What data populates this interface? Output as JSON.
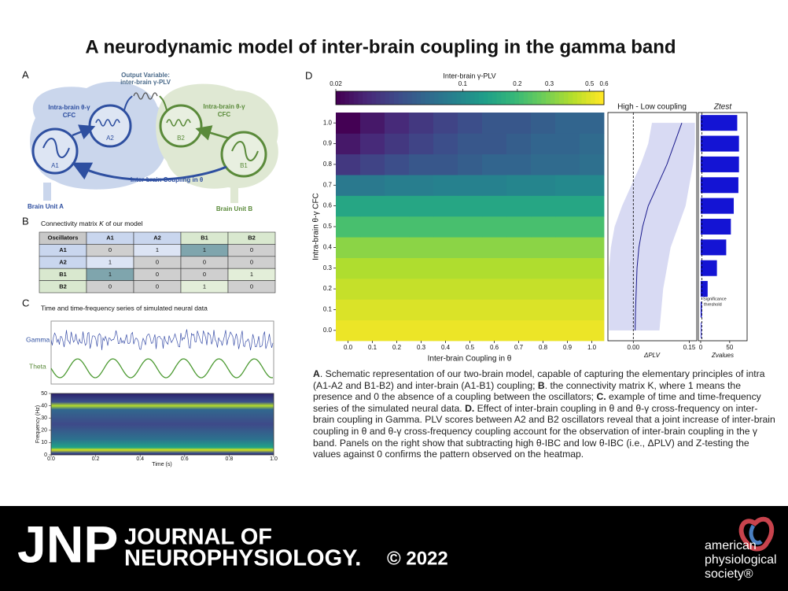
{
  "title": "A neurodynamic model of inter-brain coupling in the gamma band",
  "panel_a": {
    "letter": "A",
    "output_variable": "Output Variable:",
    "output_name": "inter-brain γ-PLV",
    "cfc_left": [
      "Intra-brain θ-γ",
      "CFC"
    ],
    "cfc_right": [
      "Intra-brain θ-γ",
      "CFC"
    ],
    "nodes": [
      "A1",
      "A2",
      "B2",
      "B1"
    ],
    "coupling": "Inter-brain Coupling in θ",
    "unit_a": "Brain Unit A",
    "unit_b": "Brain Unit B"
  },
  "panel_b": {
    "letter": "B",
    "title_pre": "Connectivity matrix ",
    "title_k": "K",
    "title_post": " of our model",
    "header": [
      "Oscillators",
      "A1",
      "A2",
      "B1",
      "B2"
    ],
    "rows": [
      [
        "A1",
        0,
        1,
        1,
        0
      ],
      [
        "A2",
        1,
        0,
        0,
        0
      ],
      [
        "B1",
        1,
        0,
        0,
        1
      ],
      [
        "B2",
        0,
        0,
        1,
        0
      ]
    ]
  },
  "panel_c": {
    "letter": "C",
    "title": "Time and time-frequency series of simulated neural data",
    "gamma_label": "Gamma",
    "theta_label": "Theta",
    "ylabel": "Frequency (Hz)",
    "xlabel": "Time (s)",
    "ylim": [
      0,
      50
    ],
    "yticks": [
      0,
      10,
      20,
      30,
      40,
      50
    ],
    "xlim": [
      0,
      1
    ],
    "xticks": [
      {
        "value": 0,
        "label": "0.0"
      },
      0.2,
      0.4,
      0.6,
      0.8,
      {
        "value": 1,
        "label": "1.0"
      }
    ]
  },
  "panel_d_letter": "D",
  "chart_data": [
    {
      "type": "heatmap",
      "colorbar_label": "Inter-brain γ-PLV",
      "clim": [
        0.02,
        0.6
      ],
      "log": true,
      "colormap": "viridis",
      "colorbar_ticks": [
        0.02,
        0.1,
        0.2,
        0.3,
        0.5,
        0.6
      ],
      "xlabel": "Inter-brain Coupling in θ",
      "ylabel": "Intra-brain θ-γ CFC",
      "xticks": [
        {
          "value": 0,
          "label": "0.0"
        },
        0.1,
        0.2,
        0.3,
        0.4,
        0.5,
        0.6,
        0.7,
        0.8,
        0.9,
        {
          "value": 1,
          "label": "1.0"
        }
      ],
      "yticks": [
        {
          "value": 0,
          "label": "0.0"
        },
        0.1,
        0.2,
        0.3,
        0.4,
        0.5,
        0.6,
        0.7,
        0.8,
        0.9,
        {
          "value": 1,
          "label": "1.0"
        }
      ],
      "values": [
        [
          0.55,
          0.55,
          0.55,
          0.55,
          0.55,
          0.55,
          0.55,
          0.55,
          0.55,
          0.55,
          0.55
        ],
        [
          0.5,
          0.5,
          0.5,
          0.5,
          0.5,
          0.5,
          0.5,
          0.5,
          0.5,
          0.5,
          0.5
        ],
        [
          0.45,
          0.45,
          0.45,
          0.45,
          0.45,
          0.45,
          0.45,
          0.45,
          0.45,
          0.45,
          0.45
        ],
        [
          0.4,
          0.4,
          0.4,
          0.4,
          0.4,
          0.4,
          0.4,
          0.4,
          0.4,
          0.4,
          0.4
        ],
        [
          0.33,
          0.33,
          0.33,
          0.33,
          0.33,
          0.33,
          0.33,
          0.33,
          0.33,
          0.33,
          0.33
        ],
        [
          0.22,
          0.22,
          0.22,
          0.22,
          0.22,
          0.22,
          0.22,
          0.22,
          0.22,
          0.22,
          0.22
        ],
        [
          0.15,
          0.15,
          0.15,
          0.15,
          0.15,
          0.15,
          0.15,
          0.15,
          0.15,
          0.15,
          0.15
        ],
        [
          0.08,
          0.08,
          0.085,
          0.085,
          0.09,
          0.09,
          0.09,
          0.095,
          0.095,
          0.1,
          0.1
        ],
        [
          0.035,
          0.04,
          0.045,
          0.05,
          0.05,
          0.055,
          0.06,
          0.06,
          0.065,
          0.065,
          0.07
        ],
        [
          0.025,
          0.03,
          0.035,
          0.04,
          0.045,
          0.05,
          0.05,
          0.055,
          0.06,
          0.06,
          0.065
        ],
        [
          0.02,
          0.025,
          0.03,
          0.035,
          0.04,
          0.045,
          0.05,
          0.05,
          0.055,
          0.06,
          0.06
        ]
      ]
    },
    {
      "type": "line",
      "title": "High - Low coupling",
      "xlabel": "ΔPLV",
      "xlim": [
        -0.068,
        0.17
      ],
      "xticks": [
        {
          "value": 0,
          "label": "0.00"
        },
        0.15
      ],
      "color": "#1a1a8c",
      "band_color": "#d8daf3",
      "values": [
        0.005,
        0.006,
        0.008,
        0.01,
        0.015,
        0.025,
        0.04,
        0.065,
        0.09,
        0.11,
        0.13
      ],
      "band_low": [
        -0.065,
        -0.065,
        -0.065,
        -0.065,
        -0.06,
        -0.05,
        -0.03,
        -0.005,
        0.02,
        0.04,
        0.05
      ],
      "band_high": [
        0.07,
        0.075,
        0.08,
        0.09,
        0.1,
        0.12,
        0.14,
        0.15,
        0.16,
        0.165,
        0.165
      ]
    },
    {
      "type": "bar",
      "title": "Ztest",
      "xlabel": "Zvalues",
      "xlim": [
        -4,
        80
      ],
      "xticks": [
        0,
        50
      ],
      "color": "#1414d4",
      "threshold": 1.96,
      "annotation": [
        "Significance",
        "threshold"
      ],
      "values": [
        1,
        2,
        12,
        28,
        44,
        52,
        57,
        65,
        66,
        66,
        63
      ]
    }
  ],
  "caption": [
    "A",
    ". Schematic representation of our two-brain model, capable of capturing the elementary principles of intra (A1-A2 and B1-B2) and inter-brain (A1-B1) coupling; ",
    "B",
    ". the connectivity matrix K, where 1 means the presence and 0 the absence of a coupling between the oscillators; ",
    "C.",
    " example of time and time-frequency series of the simulated neural data. ",
    "D.",
    " Effect of inter-brain coupling in θ and θ-γ cross-frequency on inter-brain coupling in Gamma. PLV scores between A2 and B2 oscillators reveal that a joint increase of inter-brain coupling in θ and θ-γ cross-frequency coupling account for the observation of inter-brain coupling in the γ band. Panels on the right show that subtracting high θ-IBC and low θ-IBC (i.e., ΔPLV) and Z-testing the values against 0 confirms the pattern observed on the heatmap."
  ],
  "footer": {
    "jnp": "JNP",
    "journal": [
      "JOURNAL OF",
      "NEUROPHYSIOLOGY."
    ],
    "copyright": "© 2022",
    "society": [
      "american",
      "physiological",
      "society®"
    ]
  }
}
